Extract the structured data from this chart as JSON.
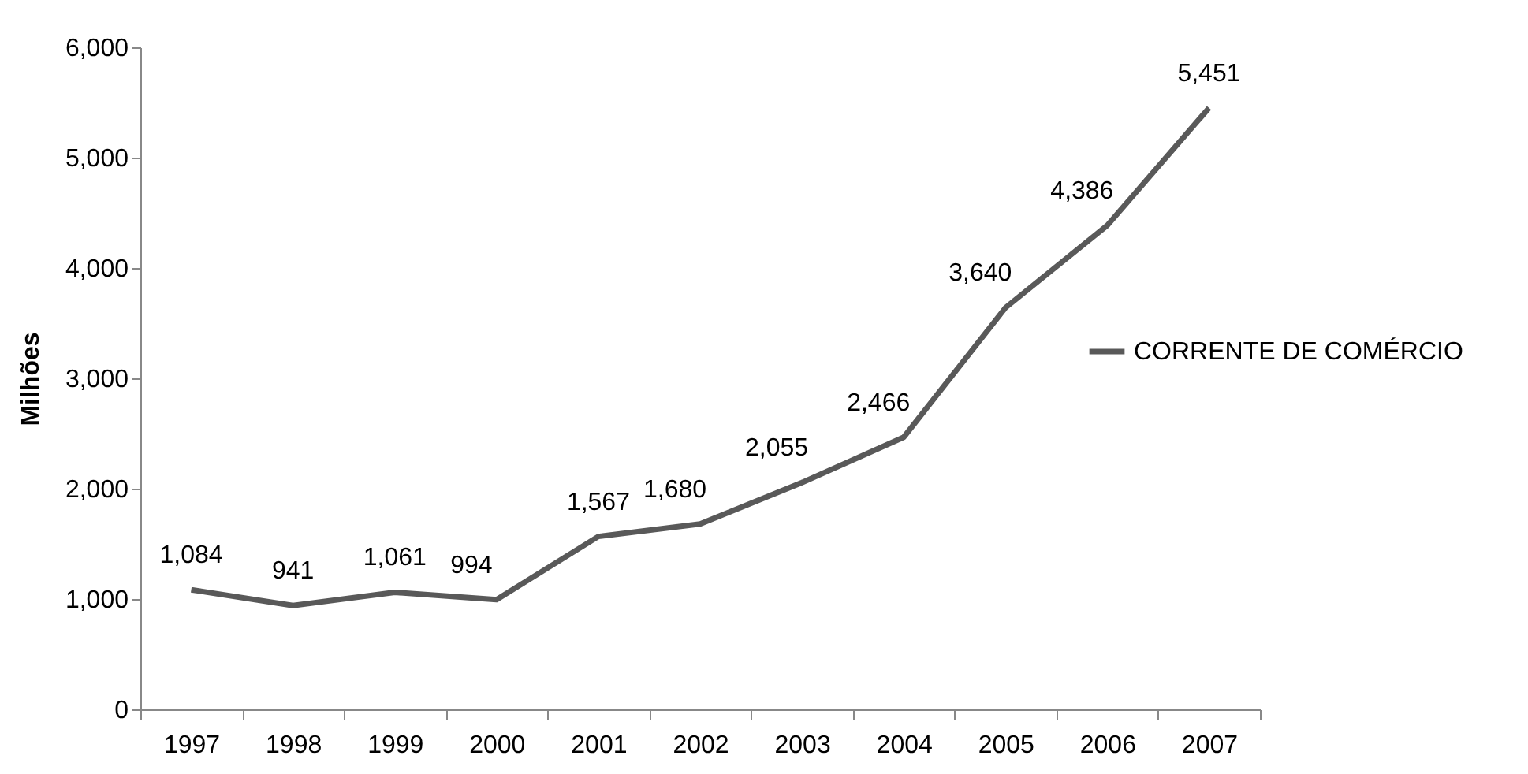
{
  "chart_data": {
    "type": "line",
    "ylabel": "Milhões",
    "categories": [
      "1997",
      "1998",
      "1999",
      "2000",
      "2001",
      "2002",
      "2003",
      "2004",
      "2005",
      "2006",
      "2007"
    ],
    "series": [
      {
        "name": "CORRENTE DE COMÉRCIO",
        "color": "#595959",
        "values": [
          1084,
          941,
          1061,
          994,
          1567,
          1680,
          2055,
          2466,
          3640,
          4386,
          5451
        ],
        "value_labels": [
          "1,084",
          "941",
          "1,061",
          "994",
          "1,567",
          "1,680",
          "2,055",
          "2,466",
          "3,640",
          "4,386",
          "5,451"
        ]
      }
    ],
    "ylim": [
      0,
      6000
    ],
    "yticks": [
      0,
      {
        "value": 1000,
        "label": "1,000"
      },
      {
        "value": 2000,
        "label": "2,000"
      },
      {
        "value": 3000,
        "label": "3,000"
      },
      {
        "value": 4000,
        "label": "4,000"
      },
      {
        "value": 5000,
        "label": "5,000"
      },
      {
        "value": 6000,
        "label": "6,000"
      }
    ],
    "grid": false,
    "legend": "right",
    "marker": "none",
    "line_style": "solid"
  }
}
